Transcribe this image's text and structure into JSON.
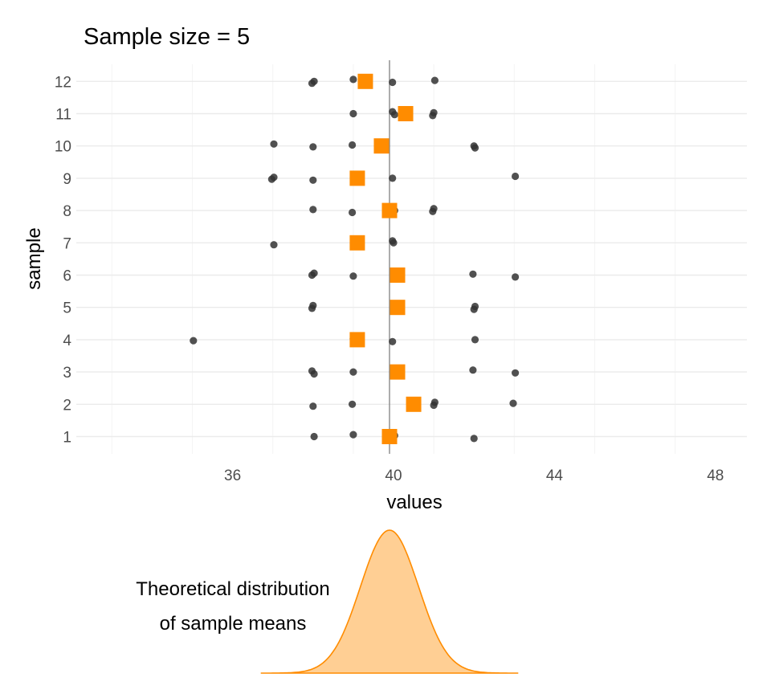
{
  "chart_data": [
    {
      "type": "scatter",
      "title": "Sample size = 5",
      "xlabel": "values",
      "ylabel": "sample",
      "xlim": [
        32.2,
        48.8
      ],
      "x_ticks": [
        36,
        40,
        44,
        48
      ],
      "categories": [
        "1",
        "2",
        "3",
        "4",
        "5",
        "6",
        "7",
        "8",
        "9",
        "10",
        "11",
        "12"
      ],
      "grid": true,
      "reference_line": {
        "x": 39.9,
        "color": "#808080"
      },
      "series": [
        {
          "role": "observations",
          "marker": "circle",
          "color": "#333333",
          "points": [
            {
              "sample": 1,
              "values": [
                38,
                39,
                40,
                40,
                42
              ]
            },
            {
              "sample": 2,
              "values": [
                38,
                39,
                41,
                41,
                43
              ]
            },
            {
              "sample": 3,
              "values": [
                38,
                38,
                39,
                42,
                43
              ]
            },
            {
              "sample": 4,
              "values": [
                35,
                39,
                40,
                42
              ]
            },
            {
              "sample": 5,
              "values": [
                38,
                38,
                42,
                42
              ]
            },
            {
              "sample": 6,
              "values": [
                38,
                38,
                39,
                42,
                43
              ]
            },
            {
              "sample": 7,
              "values": [
                37,
                40,
                40
              ]
            },
            {
              "sample": 8,
              "values": [
                38,
                39,
                40,
                41,
                41
              ]
            },
            {
              "sample": 9,
              "values": [
                37,
                37,
                38,
                40,
                43
              ]
            },
            {
              "sample": 10,
              "values": [
                37,
                38,
                39,
                42,
                42
              ]
            },
            {
              "sample": 11,
              "values": [
                39,
                40,
                40,
                41,
                41
              ]
            },
            {
              "sample": 12,
              "values": [
                38,
                38,
                39,
                40,
                41
              ]
            }
          ]
        },
        {
          "role": "sample means",
          "marker": "square",
          "color": "#ff8c00",
          "values": [
            39.9,
            40.5,
            40.1,
            39.1,
            40.1,
            40.1,
            39.1,
            39.9,
            39.1,
            39.7,
            40.3,
            39.3
          ]
        }
      ]
    },
    {
      "type": "area",
      "annotation": [
        "Theoretical distribution",
        "of sample means"
      ],
      "distribution": {
        "family": "normal",
        "mean": 39.9,
        "sd": 0.72
      },
      "x_range": [
        36.7,
        43.1
      ],
      "fill_color": "#ffcf94",
      "line_color": "#ff8c00"
    }
  ]
}
